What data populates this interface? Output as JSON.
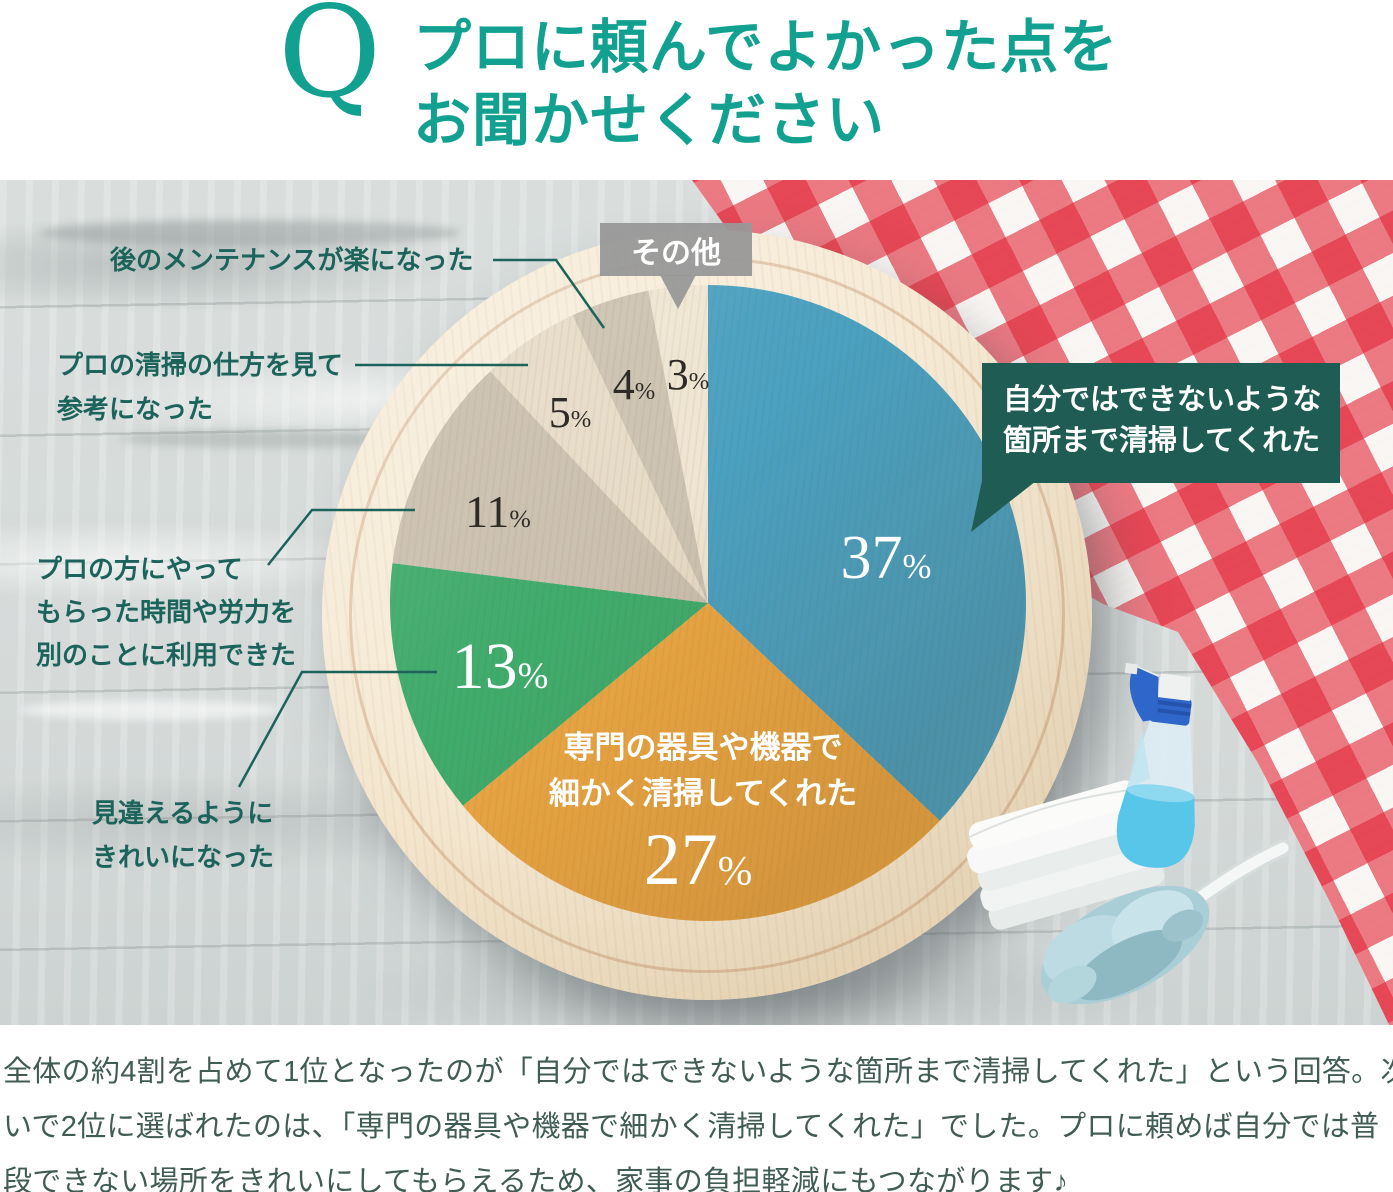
{
  "header": {
    "q_mark": "Q",
    "title_lines": [
      "プロに頼んでよかった点を",
      "お聞かせください"
    ]
  },
  "chart_data": {
    "type": "pie",
    "title": "プロに頼んでよかった点をお聞かせください",
    "unit": "%",
    "start_angle": "top, clockwise",
    "segments": [
      {
        "label": "自分ではできないような箇所まで清掃してくれた",
        "value": 37,
        "color": "#4ba1c1"
      },
      {
        "label": "専門の器具や機器で細かく清掃してくれた",
        "value": 27,
        "color": "#eba744"
      },
      {
        "label": "見違えるようにきれいになった",
        "value": 13,
        "color": "#3fac6c"
      },
      {
        "label": "プロの方にやってもらった時間や労力を別のことに利用できた",
        "value": 11,
        "color": "#cbc0af"
      },
      {
        "label": "プロの清掃の仕方を見て参考になった",
        "value": 5,
        "color": "#e7dcc8"
      },
      {
        "label": "後のメンテナンスが楽になった",
        "value": 4,
        "color": "#cdc3b2"
      },
      {
        "label": "その他",
        "value": 3,
        "color": "#efe5d2"
      }
    ]
  },
  "callouts": {
    "main_answer_lines": [
      "自分ではできないような",
      "箇所まで清掃してくれた"
    ],
    "orange_label_lines": [
      "専門の器具や機器で",
      "細かく清掃してくれた"
    ],
    "left_labels": [
      {
        "lines": [
          "後のメンテナンスが楽になった"
        ]
      },
      {
        "lines": [
          "プロの清掃の仕方を見て",
          "参考になった"
        ]
      },
      {
        "lines": [
          "プロの方にやって",
          "もらった時間や労力を",
          "別のことに利用できた"
        ]
      },
      {
        "lines": [
          "見違えるように",
          "きれいになった"
        ]
      }
    ]
  },
  "footer": {
    "lines": [
      "全体の約4割を占めて1位となったのが「自分ではできないような箇所まで清掃してくれた」という回答。次",
      "いで2位に選ばれたのは、「専門の器具や機器で細かく清掃してくれた」でした。プロに頼めば自分では普",
      "段できない場所をきれいにしてもらえるため、家事の負担軽減にもつながります♪"
    ]
  },
  "colors": {
    "title_teal": "#12a191",
    "label_teal": "#1c645b",
    "callout_box_teal": "#1f5d54",
    "sonota_gray": "#989898",
    "footer_text": "#415c55",
    "gingham_red": "#e22638"
  },
  "objects": [
    "spray-bottle",
    "folded-towels",
    "duster"
  ]
}
